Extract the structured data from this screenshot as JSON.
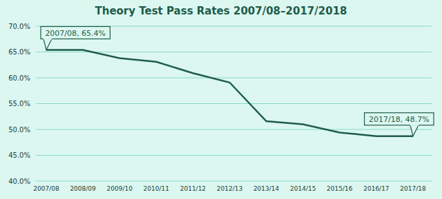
{
  "chart_data": {
    "type": "line",
    "title": "Theory Test Pass Rates 2007/08–2017/2018",
    "categories": [
      "2007/08",
      "2008/09",
      "2009/10",
      "2010/11",
      "2011/12",
      "2012/13",
      "2013/14",
      "2014/15",
      "2015/16",
      "2016/17",
      "2017/18"
    ],
    "values": [
      65.4,
      65.4,
      63.8,
      63.1,
      60.9,
      59.1,
      51.6,
      51.0,
      49.4,
      48.7,
      48.7
    ],
    "color": "#1f5c4a",
    "ylim": [
      40,
      70
    ],
    "yticks": [
      {
        "value": 40,
        "label": "40.0%"
      },
      {
        "value": 45,
        "label": "45.0%"
      },
      {
        "value": 50,
        "label": "50.0%"
      },
      {
        "value": 55,
        "label": "55.0%"
      },
      {
        "value": 60,
        "label": "60.0%"
      },
      {
        "value": 65,
        "label": "65.0%"
      },
      {
        "value": 70,
        "label": "70.0%"
      }
    ],
    "grid": true,
    "annotations": [
      {
        "x": "2007/08",
        "y": 65.4,
        "text": "2007/08, 65.4%"
      },
      {
        "x": "2017/18",
        "y": 48.7,
        "text": "2017/18, 48.7%"
      }
    ]
  }
}
